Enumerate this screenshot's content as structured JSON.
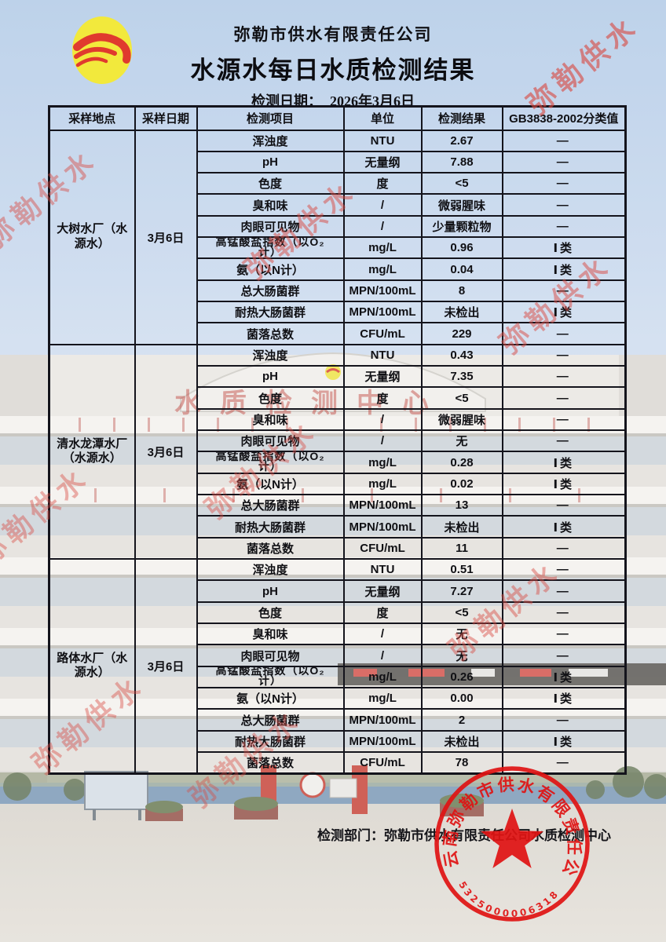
{
  "page": {
    "company": "弥勒市供水有限责任公司",
    "title": "水源水每日水质检测结果",
    "date_label": "检测日期：",
    "date_value": "2026年3月6日",
    "footer_label": "检测部门：",
    "footer_department": "弥勒市供水有限责任公司水质检测中心",
    "watermark_text": "弥勒供水",
    "building_sign_text": "水质检测中心"
  },
  "table": {
    "headers": [
      "采样地点",
      "采样日期",
      "检测项目",
      "单位",
      "检测结果",
      "GB3838-2002分类值"
    ],
    "sections": [
      {
        "location": "大树水厂（水源水）",
        "date": "3月6日",
        "rows": [
          {
            "item": "浑浊度",
            "unit": "NTU",
            "result": "2.67",
            "class": "—"
          },
          {
            "item": "pH",
            "unit": "无量纲",
            "result": "7.88",
            "class": "—"
          },
          {
            "item": "色度",
            "unit": "度",
            "result": "<5",
            "class": "—"
          },
          {
            "item": "臭和味",
            "unit": "/",
            "result": "微弱腥味",
            "class": "—"
          },
          {
            "item": "肉眼可见物",
            "unit": "/",
            "result": "少量颗粒物",
            "class": "—"
          },
          {
            "item": "高锰酸盐指数（以O₂计）",
            "unit": "mg/L",
            "result": "0.96",
            "class": "Ⅰ类"
          },
          {
            "item": "氨（以N计）",
            "unit": "mg/L",
            "result": "0.04",
            "class": "Ⅰ类"
          },
          {
            "item": "总大肠菌群",
            "unit": "MPN/100mL",
            "result": "8",
            "class": "—"
          },
          {
            "item": "耐热大肠菌群",
            "unit": "MPN/100mL",
            "result": "未检出",
            "class": "Ⅰ类"
          },
          {
            "item": "菌落总数",
            "unit": "CFU/mL",
            "result": "229",
            "class": "—"
          }
        ]
      },
      {
        "location": "清水龙潭水厂（水源水）",
        "date": "3月6日",
        "rows": [
          {
            "item": "浑浊度",
            "unit": "NTU",
            "result": "0.43",
            "class": "—"
          },
          {
            "item": "pH",
            "unit": "无量纲",
            "result": "7.35",
            "class": "—"
          },
          {
            "item": "色度",
            "unit": "度",
            "result": "<5",
            "class": "—"
          },
          {
            "item": "臭和味",
            "unit": "/",
            "result": "微弱腥味",
            "class": "—"
          },
          {
            "item": "肉眼可见物",
            "unit": "/",
            "result": "无",
            "class": "—"
          },
          {
            "item": "高锰酸盐指数（以O₂计）",
            "unit": "mg/L",
            "result": "0.28",
            "class": "Ⅰ类"
          },
          {
            "item": "氨（以N计）",
            "unit": "mg/L",
            "result": "0.02",
            "class": "Ⅰ类"
          },
          {
            "item": "总大肠菌群",
            "unit": "MPN/100mL",
            "result": "13",
            "class": "—"
          },
          {
            "item": "耐热大肠菌群",
            "unit": "MPN/100mL",
            "result": "未检出",
            "class": "Ⅰ类"
          },
          {
            "item": "菌落总数",
            "unit": "CFU/mL",
            "result": "11",
            "class": "—"
          }
        ]
      },
      {
        "location": "路体水厂（水源水）",
        "date": "3月6日",
        "rows": [
          {
            "item": "浑浊度",
            "unit": "NTU",
            "result": "0.51",
            "class": "—"
          },
          {
            "item": "pH",
            "unit": "无量纲",
            "result": "7.27",
            "class": "—"
          },
          {
            "item": "色度",
            "unit": "度",
            "result": "<5",
            "class": "—"
          },
          {
            "item": "臭和味",
            "unit": "/",
            "result": "无",
            "class": "—"
          },
          {
            "item": "肉眼可见物",
            "unit": "/",
            "result": "无",
            "class": "—"
          },
          {
            "item": "高锰酸盐指数（以O₂计）",
            "unit": "mg/L",
            "result": "0.26",
            "class": "Ⅰ类"
          },
          {
            "item": "氨（以N计）",
            "unit": "mg/L",
            "result": "0.00",
            "class": "Ⅰ类"
          },
          {
            "item": "总大肠菌群",
            "unit": "MPN/100mL",
            "result": "2",
            "class": "—"
          },
          {
            "item": "耐热大肠菌群",
            "unit": "MPN/100mL",
            "result": "未检出",
            "class": "Ⅰ类"
          },
          {
            "item": "菌落总数",
            "unit": "CFU/mL",
            "result": "78",
            "class": "—"
          }
        ]
      }
    ]
  },
  "seal": {
    "ring_text": "云南弥勒市供水有限责任公司",
    "serial_number": "5325000006318"
  },
  "colors": {
    "watermark_red": "#d94a42",
    "seal_red": "#e01313",
    "logo_yellow": "#f2e93c",
    "logo_red": "#e03a2e",
    "table_line": "#14141c"
  }
}
